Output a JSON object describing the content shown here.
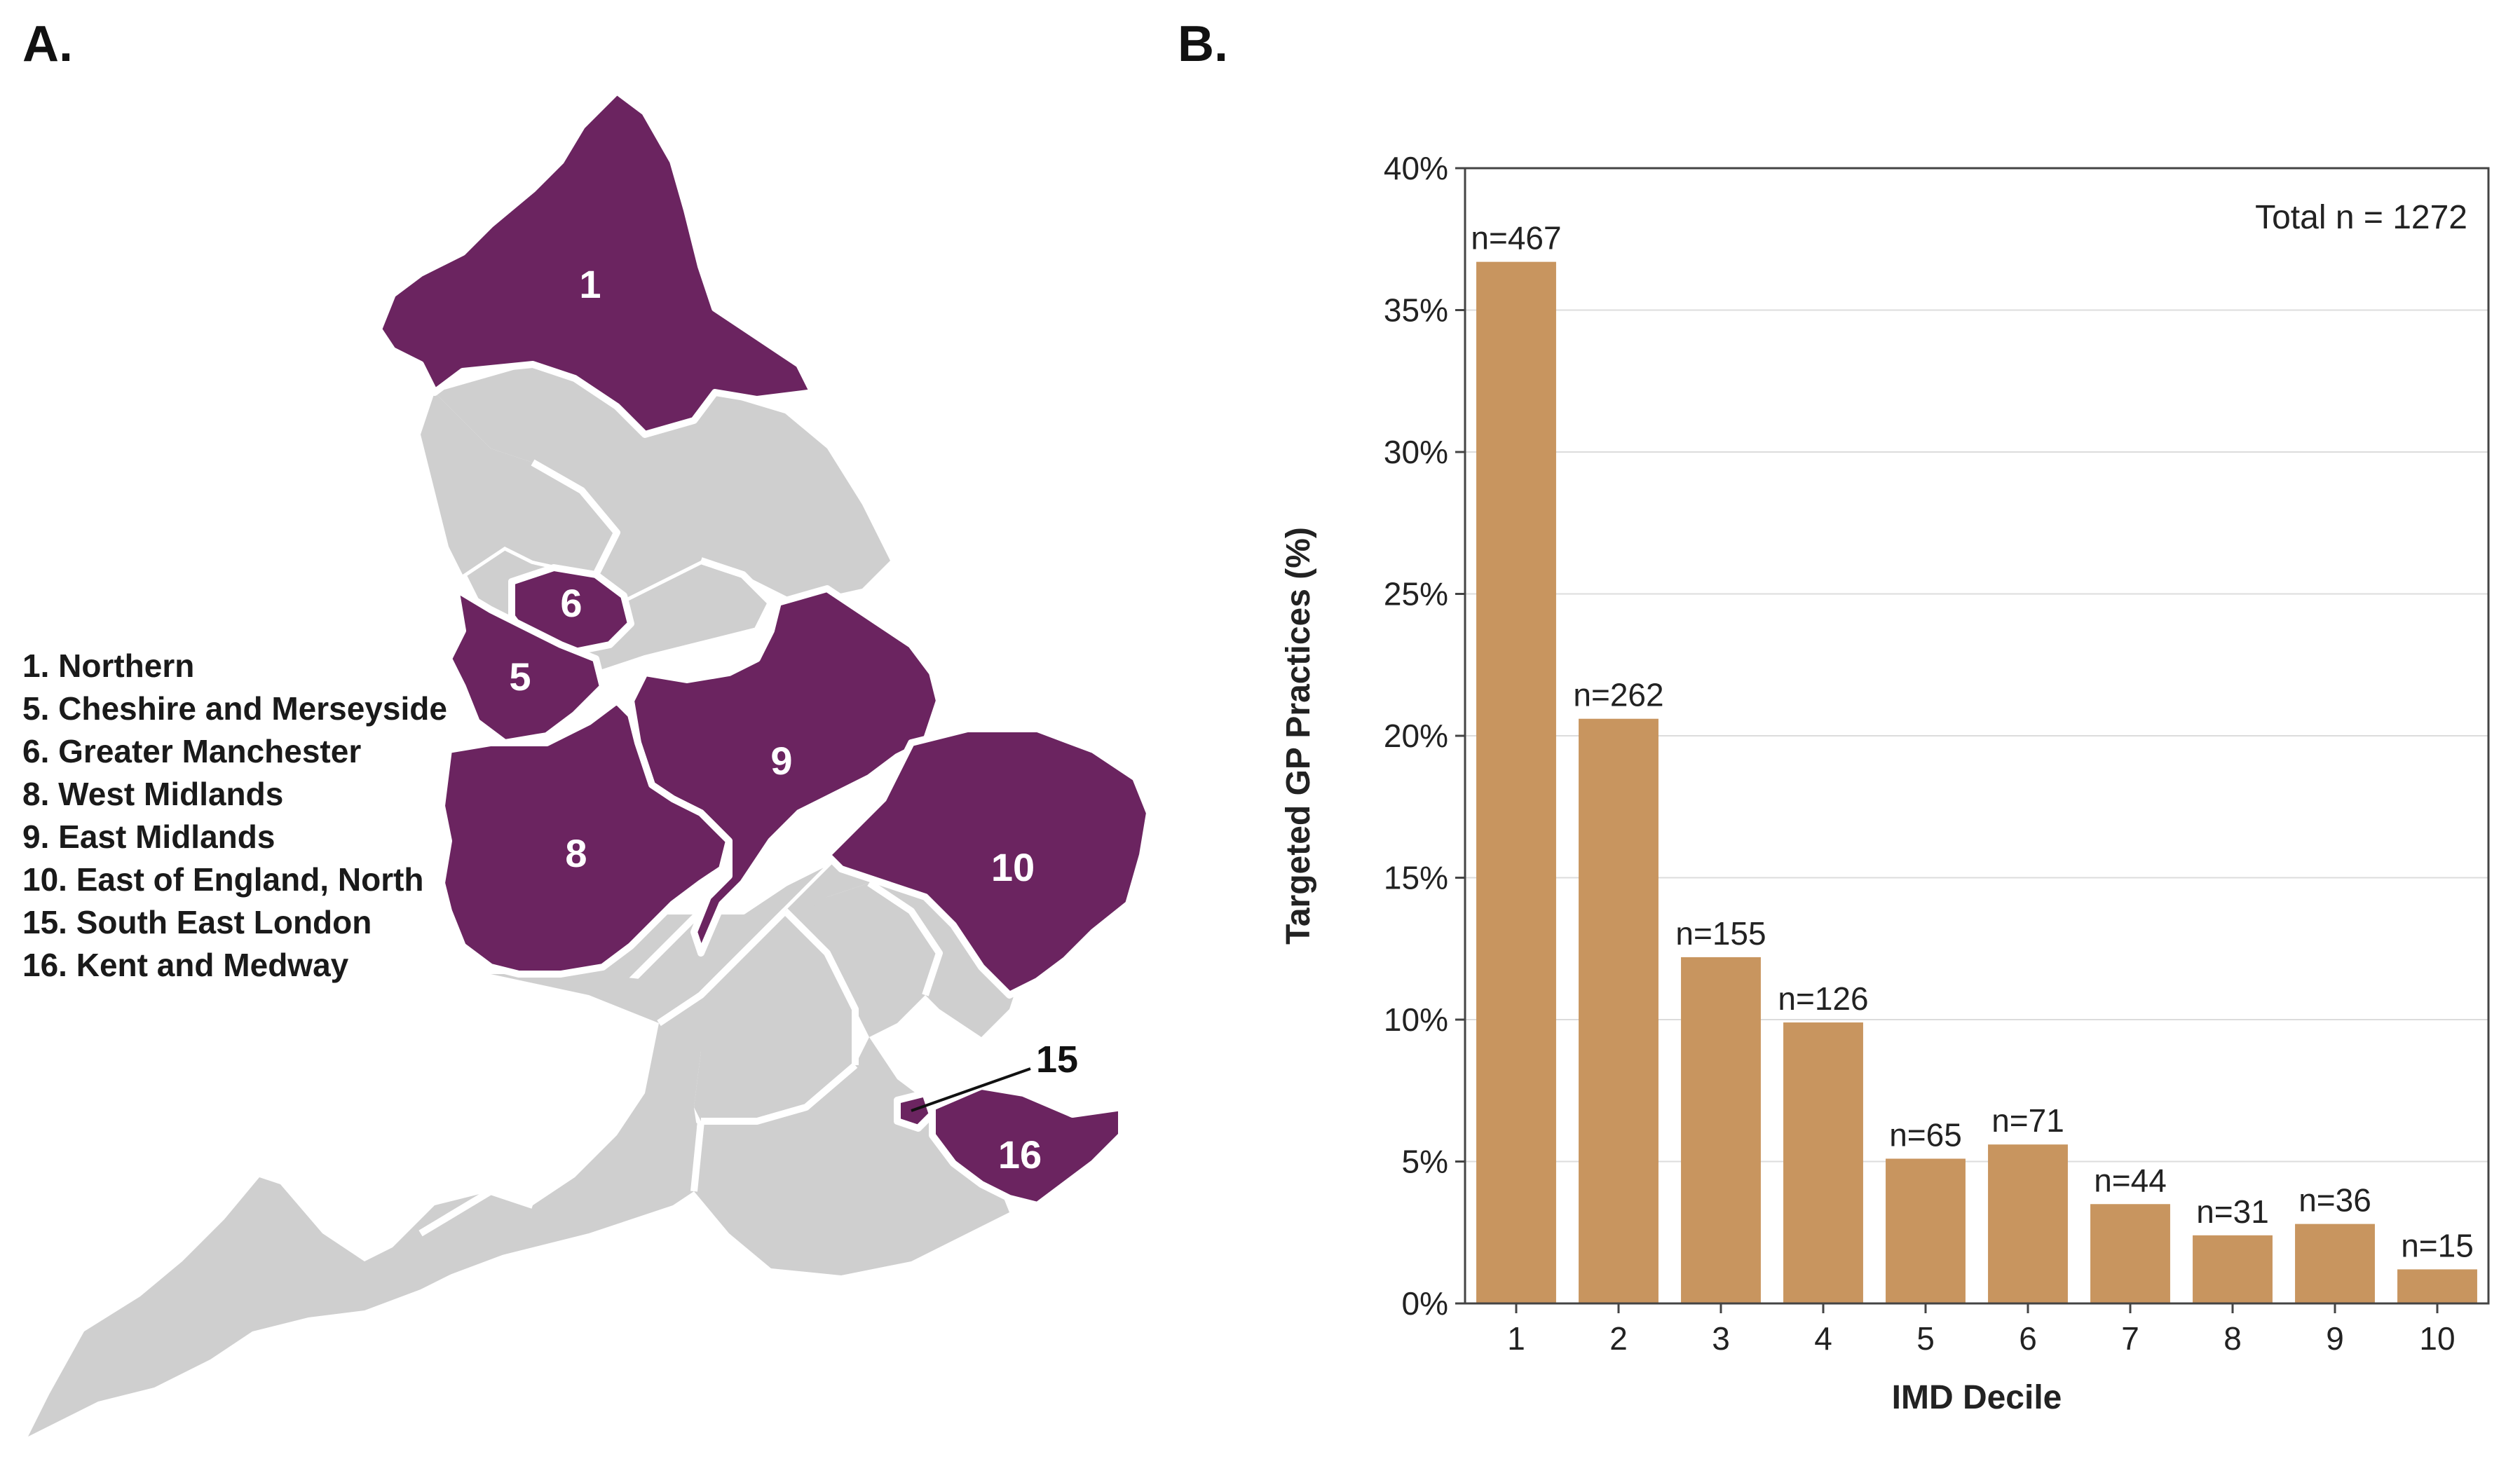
{
  "panels": {
    "a_label": "A.",
    "b_label": "B."
  },
  "map": {
    "highlight_color": "#6b2460",
    "base_color": "#cfcfcf",
    "region_numbers": [
      "1",
      "6",
      "5",
      "9",
      "8",
      "10",
      "16"
    ],
    "callout_15": "15",
    "legend": [
      "1. Northern",
      "5. Cheshire and Merseyside",
      "6. Greater Manchester",
      "8. West Midlands",
      "9. East Midlands",
      "10. East of England, North",
      "15. South East London",
      "16. Kent and Medway"
    ]
  },
  "chart_data": {
    "type": "bar",
    "categories": [
      "1",
      "2",
      "3",
      "4",
      "5",
      "6",
      "7",
      "8",
      "9",
      "10"
    ],
    "values": [
      36.7,
      20.6,
      12.2,
      9.9,
      5.1,
      5.6,
      3.5,
      2.4,
      2.8,
      1.2
    ],
    "data_labels": [
      "n=467",
      "n=262",
      "n=155",
      "n=126",
      "n=65",
      "n=71",
      "n=44",
      "n=31",
      "n=36",
      "n=15"
    ],
    "yticks": [
      "0%",
      "5%",
      "10%",
      "15%",
      "20%",
      "25%",
      "30%",
      "35%",
      "40%"
    ],
    "ylim": [
      0,
      40
    ],
    "xlabel": "IMD Decile",
    "ylabel": "Targeted GP Practices (%)",
    "annotation": "Total n = 1272",
    "bar_color": "#c8955f",
    "grid": true
  }
}
